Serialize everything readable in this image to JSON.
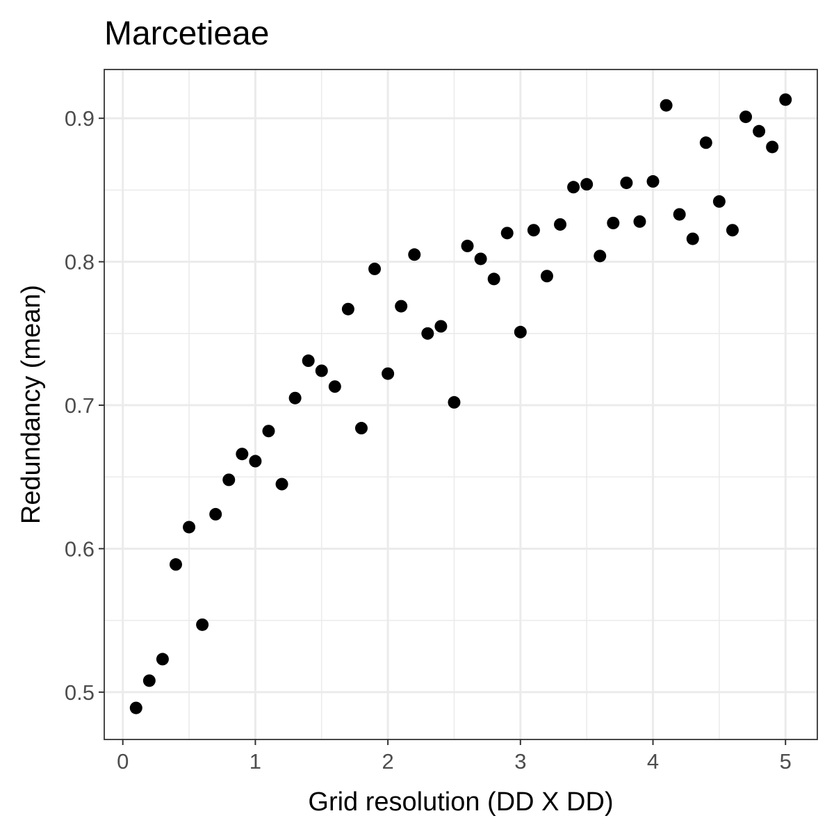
{
  "chart_data": {
    "type": "scatter",
    "title": "Marcetieae",
    "xlabel": "Grid resolution (DD X DD)",
    "ylabel": "Redundancy (mean)",
    "xlim": [
      -0.14,
      5.24
    ],
    "ylim": [
      0.467,
      0.934
    ],
    "x_ticks": [
      0,
      1,
      2,
      3,
      4,
      5
    ],
    "x_tick_labels": [
      "0",
      "1",
      "2",
      "3",
      "4",
      "5"
    ],
    "y_ticks": [
      0.5,
      0.6,
      0.7,
      0.8,
      0.9
    ],
    "y_tick_labels": [
      "0.5",
      "0.6",
      "0.7",
      "0.8",
      "0.9"
    ],
    "grid": true,
    "point_color": "#000000",
    "x": [
      0.1,
      0.2,
      0.3,
      0.4,
      0.5,
      0.6,
      0.7,
      0.8,
      0.9,
      1.0,
      1.1,
      1.2,
      1.3,
      1.4,
      1.5,
      1.6,
      1.7,
      1.8,
      1.9,
      2.0,
      2.1,
      2.2,
      2.3,
      2.4,
      2.5,
      2.6,
      2.7,
      2.8,
      2.9,
      3.0,
      3.1,
      3.2,
      3.3,
      3.4,
      3.5,
      3.6,
      3.7,
      3.8,
      3.9,
      4.0,
      4.1,
      4.2,
      4.3,
      4.4,
      4.5,
      4.6,
      4.7,
      4.8,
      4.9,
      5.0
    ],
    "y": [
      0.489,
      0.508,
      0.523,
      0.589,
      0.615,
      0.547,
      0.624,
      0.648,
      0.666,
      0.661,
      0.682,
      0.645,
      0.705,
      0.731,
      0.724,
      0.713,
      0.767,
      0.684,
      0.795,
      0.722,
      0.769,
      0.805,
      0.75,
      0.755,
      0.702,
      0.811,
      0.802,
      0.788,
      0.82,
      0.751,
      0.822,
      0.79,
      0.826,
      0.852,
      0.854,
      0.804,
      0.827,
      0.855,
      0.828,
      0.856,
      0.909,
      0.833,
      0.816,
      0.883,
      0.842,
      0.822,
      0.901,
      0.891,
      0.88,
      0.913
    ]
  }
}
